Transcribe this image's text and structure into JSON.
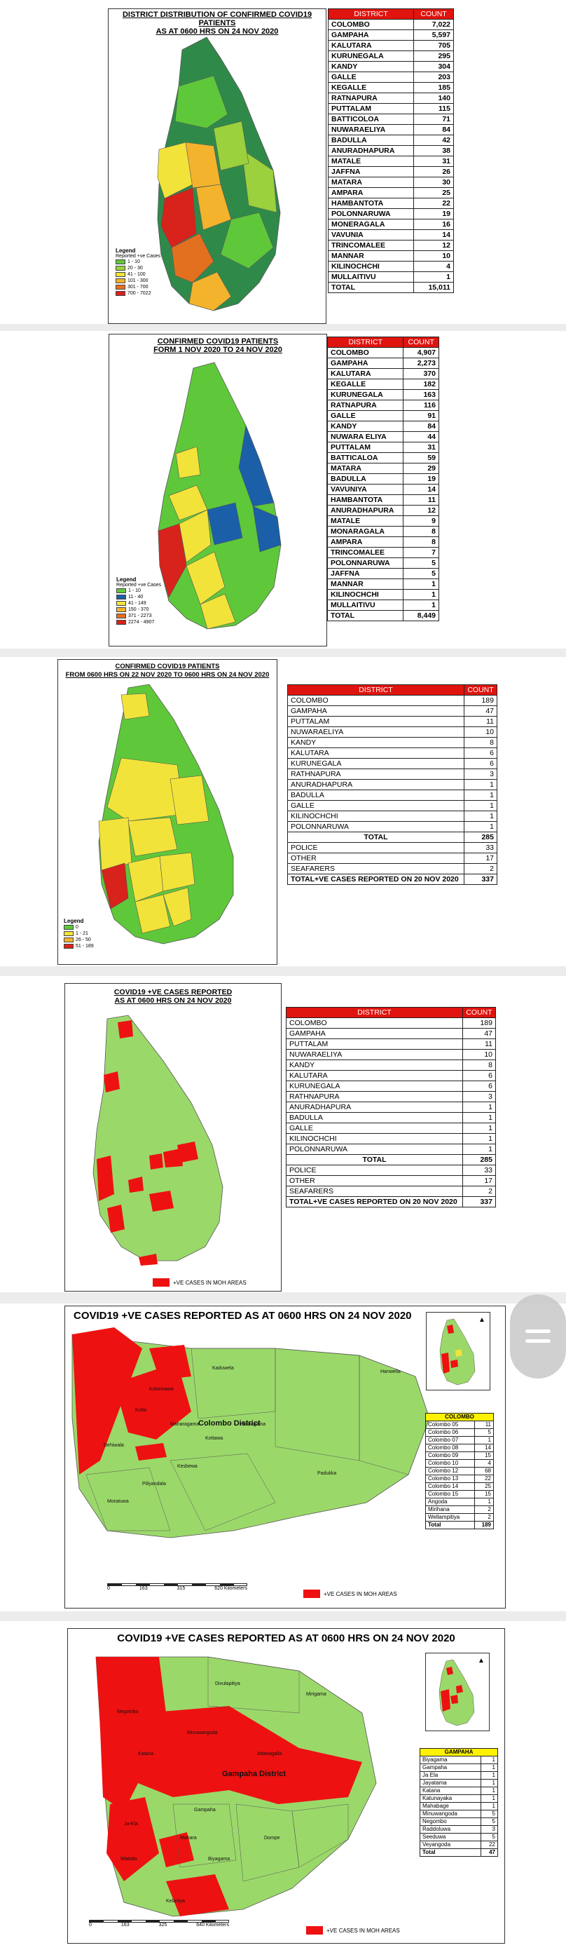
{
  "panel1": {
    "title_line1": "DISTRICT DISTRIBUTION OF CONFIRMED COVID19 PATIENTS",
    "title_line2": "AS AT 0600 HRS ON 24 NOV 2020",
    "legend_title": "Legend",
    "legend_subtitle": "Reported +ve Cases",
    "legend_items": [
      {
        "label": "1 - 10",
        "color": "#5ec83a"
      },
      {
        "label": "20 - 30",
        "color": "#9ad13c"
      },
      {
        "label": "41 - 100",
        "color": "#f2e33a"
      },
      {
        "label": "101 - 300",
        "color": "#f3b32c"
      },
      {
        "label": "301 - 700",
        "color": "#e3701f"
      },
      {
        "label": "700 - 7022",
        "color": "#d8221c"
      }
    ],
    "col_district": "DISTRICT",
    "col_count": "COUNT",
    "rows": [
      [
        "COLOMBO",
        "7,022"
      ],
      [
        "GAMPAHA",
        "5,597"
      ],
      [
        "KALUTARA",
        "705"
      ],
      [
        "KURUNEGALA",
        "295"
      ],
      [
        "KANDY",
        "304"
      ],
      [
        "GALLE",
        "203"
      ],
      [
        "KEGALLE",
        "185"
      ],
      [
        "RATNAPURA",
        "140"
      ],
      [
        "PUTTALAM",
        "115"
      ],
      [
        "BATTICOLOA",
        "71"
      ],
      [
        "NUWARAELIYA",
        "84"
      ],
      [
        "BADULLA",
        "42"
      ],
      [
        "ANURADHAPURA",
        "38"
      ],
      [
        "MATALE",
        "31"
      ],
      [
        "JAFFNA",
        "26"
      ],
      [
        "MATARA",
        "30"
      ],
      [
        "AMPARA",
        "25"
      ],
      [
        "HAMBANTOTA",
        "22"
      ],
      [
        "POLONNARUWA",
        "19"
      ],
      [
        "MONERAGALA",
        "16"
      ],
      [
        "VAVUNIA",
        "14"
      ],
      [
        "TRINCOMALEE",
        "12"
      ],
      [
        "MANNAR",
        "10"
      ],
      [
        "KILINOCHCHI",
        "4"
      ],
      [
        "MULLAITIVU",
        "1"
      ]
    ],
    "total_label": "TOTAL",
    "total_value": "15,011"
  },
  "panel2": {
    "title_line1": "CONFIRMED COVID19 PATIENTS",
    "title_line2": "FORM 1 NOV 2020 TO 24 NOV 2020",
    "legend_title": "Legend",
    "legend_subtitle": "Reported +ve Cases",
    "legend_items": [
      {
        "label": "1 - 10",
        "color": "#5ec83a"
      },
      {
        "label": "11 - 40",
        "color": "#1a5fa8"
      },
      {
        "label": "41 - 149",
        "color": "#f2e33a"
      },
      {
        "label": "150 - 370",
        "color": "#f3b32c"
      },
      {
        "label": "371 - 2273",
        "color": "#e3701f"
      },
      {
        "label": "2274 - 4907",
        "color": "#d8221c"
      }
    ],
    "col_district": "DISTRICT",
    "col_count": "COUNT",
    "rows": [
      [
        "COLOMBO",
        "4,907"
      ],
      [
        "GAMPAHA",
        "2,273"
      ],
      [
        "KALUTARA",
        "370"
      ],
      [
        "KEGALLE",
        "182"
      ],
      [
        "KURUNEGALA",
        "163"
      ],
      [
        "RATNAPURA",
        "116"
      ],
      [
        "GALLE",
        "91"
      ],
      [
        "KANDY",
        "84"
      ],
      [
        "NUWARA ELIYA",
        "44"
      ],
      [
        "PUTTALAM",
        "31"
      ],
      [
        "BATTICALOA",
        "59"
      ],
      [
        "MATARA",
        "29"
      ],
      [
        "BADULLA",
        "19"
      ],
      [
        "VAVUNIYA",
        "14"
      ],
      [
        "HAMBANTOTA",
        "11"
      ],
      [
        "ANURADHAPURA",
        "12"
      ],
      [
        "MATALE",
        "9"
      ],
      [
        "MONARAGALA",
        "8"
      ],
      [
        "AMPARA",
        "8"
      ],
      [
        "TRINCOMALEE",
        "7"
      ],
      [
        "POLONNARUWA",
        "5"
      ],
      [
        "JAFFNA",
        "5"
      ],
      [
        "MANNAR",
        "1"
      ],
      [
        "KILINOCHCHI",
        "1"
      ],
      [
        "MULLAITIVU",
        "1"
      ]
    ],
    "total_label": "TOTAL",
    "total_value": "8,449"
  },
  "panel3": {
    "title_line1": "CONFIRMED COVID19 PATIENTS",
    "title_line2": "FROM 0600 HRS ON 22 NOV 2020 TO 0600 HRS ON 24 NOV 2020",
    "legend_title": "Legend",
    "legend_items": [
      {
        "label": "0",
        "color": "#5ec83a"
      },
      {
        "label": "1 - 21",
        "color": "#f2e33a"
      },
      {
        "label": "26 - 50",
        "color": "#f3b32c"
      },
      {
        "label": "51 - 189",
        "color": "#d8221c"
      }
    ],
    "col_district": "DISTRICT",
    "col_count": "COUNT",
    "rows": [
      [
        "COLOMBO",
        "189"
      ],
      [
        "GAMPAHA",
        "47"
      ],
      [
        "PUTTALAM",
        "11"
      ],
      [
        "NUWARAELIYA",
        "10"
      ],
      [
        "KANDY",
        "8"
      ],
      [
        "KALUTARA",
        "6"
      ],
      [
        "KURUNEGALA",
        "6"
      ],
      [
        "RATHNAPURA",
        "3"
      ],
      [
        "ANURADHAPURA",
        "1"
      ],
      [
        "BADULLA",
        "1"
      ],
      [
        "GALLE",
        "1"
      ],
      [
        "KILINOCHCHI",
        "1"
      ],
      [
        "POLONNARUWA",
        "1"
      ]
    ],
    "total_label": "TOTAL",
    "total_value": "285",
    "extra_rows": [
      [
        "POLICE",
        "33"
      ],
      [
        "OTHER",
        "17"
      ],
      [
        "SEAFARERS",
        "2"
      ]
    ],
    "grand_label": "TOTAL+VE CASES REPORTED ON 20 NOV 2020",
    "grand_value": "337"
  },
  "panel4": {
    "title_line1": "COVID19 +VE CASES REPORTED",
    "title_line2": "AS AT 0600 HRS ON 24 NOV 2020",
    "key_label": "+VE CASES IN MOH AREAS",
    "col_district": "DISTRICT",
    "col_count": "COUNT",
    "rows": [
      [
        "COLOMBO",
        "189"
      ],
      [
        "GAMPAHA",
        "47"
      ],
      [
        "PUTTALAM",
        "11"
      ],
      [
        "NUWARAELIYA",
        "10"
      ],
      [
        "KANDY",
        "8"
      ],
      [
        "KALUTARA",
        "6"
      ],
      [
        "KURUNEGALA",
        "6"
      ],
      [
        "RATHNAPURA",
        "3"
      ],
      [
        "ANURADHAPURA",
        "1"
      ],
      [
        "BADULLA",
        "1"
      ],
      [
        "GALLE",
        "1"
      ],
      [
        "KILINOCHCHI",
        "1"
      ],
      [
        "POLONNARUWA",
        "1"
      ]
    ],
    "total_label": "TOTAL",
    "total_value": "285",
    "extra_rows": [
      [
        "POLICE",
        "33"
      ],
      [
        "OTHER",
        "17"
      ],
      [
        "SEAFARERS",
        "2"
      ]
    ],
    "grand_label": "TOTAL+VE CASES REPORTED ON 20 NOV 2020",
    "grand_value": "337"
  },
  "panel5": {
    "title": "COVID19 +VE CASES REPORTED AS  AT 0600 HRS ON 24 NOV 2020",
    "district_label": "Colombo District",
    "key_label": "+VE CASES IN MOH AREAS",
    "scale_labels": [
      "0",
      "163",
      "315",
      "620 Kilometers"
    ],
    "table_title": "COLOMBO",
    "rows": [
      [
        "Colombo 05",
        "11"
      ],
      [
        "Colombo 06",
        "5"
      ],
      [
        "Colombo 07",
        "1"
      ],
      [
        "Colombo 08",
        "14"
      ],
      [
        "Colombo 09",
        "15"
      ],
      [
        "Colombo 10",
        "4"
      ],
      [
        "Colombo 12",
        "68"
      ],
      [
        "Colombo 13",
        "22"
      ],
      [
        "Colombo 14",
        "25"
      ],
      [
        "Colombo 15",
        "15"
      ],
      [
        "Angoda",
        "1"
      ],
      [
        "Mirihana",
        "2"
      ],
      [
        "Wellampitiya",
        "2"
      ]
    ],
    "total_label": "Total",
    "total_value": "189",
    "place_labels": [
      "Kaduwela",
      "Hanwella",
      "Padukka",
      "Homagama",
      "Kottawa",
      "Maharagama",
      "Kesbewa",
      "Piliyandala",
      "Moratuwa",
      "Dehiwala",
      "Kolonnawa",
      "Kotte"
    ]
  },
  "panel6": {
    "title": "COVID19 +VE CASES REPORTED AS AT 0600 HRS ON 24 NOV 2020",
    "district_label": "Gampaha District",
    "key_label": "+VE CASES IN MOH AREAS",
    "scale_labels": [
      "0",
      "163",
      "325",
      "640 Kilometers"
    ],
    "table_title": "GAMPAHA",
    "rows": [
      [
        "Biyagama",
        "1"
      ],
      [
        "Gampaha",
        "1"
      ],
      [
        "Ja Ela",
        "1"
      ],
      [
        "Jayatama",
        "1"
      ],
      [
        "Katana",
        "1"
      ],
      [
        "Katunayaka",
        "1"
      ],
      [
        "Mahabage",
        "1"
      ],
      [
        "Minuwangoda",
        "5"
      ],
      [
        "Negombo",
        "5"
      ],
      [
        "Raddoluwa",
        "3"
      ],
      [
        "Seeduwa",
        "5"
      ],
      [
        "Veyangoda",
        "22"
      ]
    ],
    "total_label": "Total",
    "total_value": "47",
    "place_labels": [
      "Divulapitiya",
      "Mirigama",
      "Minuwangoda",
      "Attanagalla",
      "Gampaha",
      "Mahara",
      "Dompe",
      "Biyagama",
      "Kelaniya",
      "Negombo",
      "Katana",
      "Ja-Ela",
      "Wattala"
    ]
  },
  "colors": {
    "header_red": "#e0140f",
    "case_red": "#ee1111",
    "base_green": "#9bd86a",
    "table_yellow": "#fff200"
  }
}
